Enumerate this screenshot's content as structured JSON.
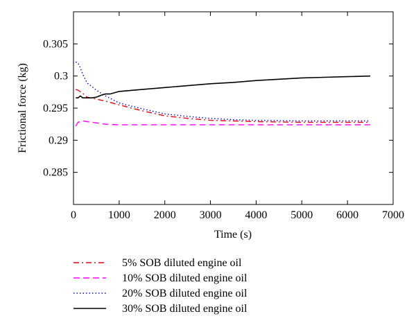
{
  "chart_data": {
    "type": "line",
    "xlabel": "Time (s)",
    "ylabel": "Frictional force (kg)",
    "xlim": [
      0,
      7000
    ],
    "ylim": [
      0.28,
      0.31
    ],
    "xticks": [
      0,
      1000,
      2000,
      3000,
      4000,
      5000,
      6000,
      7000
    ],
    "yticks": [
      0.285,
      0.29,
      0.295,
      0.3,
      0.305
    ],
    "xtick_labels": [
      "0",
      "1000",
      "2000",
      "3000",
      "4000",
      "5000",
      "6000",
      "7000"
    ],
    "ytick_labels": [
      "0.285",
      "0.29",
      "0.295",
      "0.3",
      "0.305"
    ],
    "grid": false,
    "legend_position": "below",
    "series": [
      {
        "name": "5% SOB diluted engine oil",
        "color": "#e8000b",
        "dash": "dash-dot",
        "x": [
          50,
          100,
          200,
          300,
          500,
          700,
          1000,
          1500,
          2000,
          2500,
          3000,
          3500,
          4000,
          5000,
          6000,
          6500
        ],
        "y": [
          0.2979,
          0.2978,
          0.2973,
          0.2967,
          0.2964,
          0.2961,
          0.2955,
          0.2946,
          0.2938,
          0.2934,
          0.2931,
          0.293,
          0.2929,
          0.2928,
          0.2928,
          0.2928
        ]
      },
      {
        "name": "10% SOB diluted engine oil",
        "color": "#ff00ff",
        "dash": "dashed",
        "x": [
          50,
          100,
          200,
          300,
          500,
          700,
          1000,
          1500,
          2000,
          3000,
          4000,
          5000,
          6000,
          6500
        ],
        "y": [
          0.2922,
          0.2928,
          0.293,
          0.2929,
          0.2927,
          0.2925,
          0.2924,
          0.2924,
          0.2924,
          0.2924,
          0.2924,
          0.2924,
          0.2924,
          0.2924
        ]
      },
      {
        "name": "20% SOB diluted engine oil",
        "color": "#0000cc",
        "dash": "dotted",
        "x": [
          50,
          100,
          150,
          200,
          300,
          400,
          500,
          700,
          1000,
          1500,
          2000,
          2500,
          3000,
          3500,
          4000,
          5000,
          6000,
          6500
        ],
        "y": [
          0.3022,
          0.302,
          0.3013,
          0.3003,
          0.2989,
          0.2984,
          0.2978,
          0.2969,
          0.2958,
          0.2949,
          0.2941,
          0.2937,
          0.2934,
          0.2932,
          0.2931,
          0.293,
          0.293,
          0.293
        ]
      },
      {
        "name": "30% SOB diluted engine oil",
        "color": "#000000",
        "dash": "solid",
        "x": [
          50,
          100,
          150,
          200,
          300,
          400,
          500,
          600,
          700,
          800,
          1000,
          1500,
          2000,
          2500,
          3000,
          3500,
          4000,
          4500,
          5000,
          5500,
          6000,
          6500
        ],
        "y": [
          0.2966,
          0.2966,
          0.2969,
          0.2966,
          0.2966,
          0.2966,
          0.2967,
          0.297,
          0.2972,
          0.2972,
          0.2976,
          0.2979,
          0.2982,
          0.2985,
          0.2988,
          0.299,
          0.2993,
          0.2995,
          0.2997,
          0.2998,
          0.2999,
          0.3
        ]
      }
    ]
  }
}
